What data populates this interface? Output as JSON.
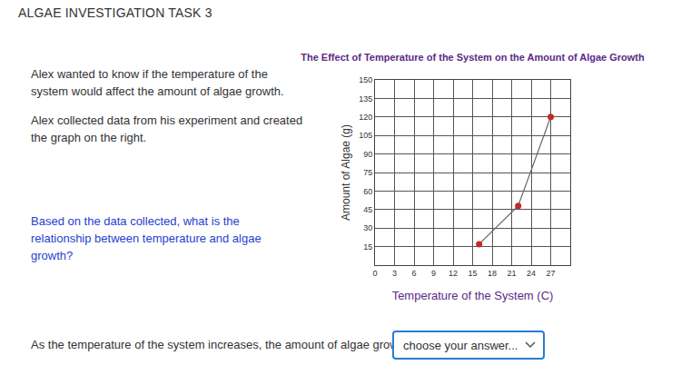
{
  "page": {
    "header": "ALGAE INVESTIGATION TASK 3",
    "paragraphs": [
      "Alex wanted to know if the temperature of the system would affect the amount of algae growth.",
      "Alex collected data from his experiment and created the graph on the right."
    ],
    "question": "Based on the data collected, what is the relationship between temperature and algae growth?",
    "answer_prompt": "As the temperature of the system increases, the amount of algae growth",
    "dropdown": "choose your answer..."
  },
  "chart_data": {
    "type": "line",
    "title": "The Effect of Temperature of the System on the Amount of Algae Growth",
    "x_label": "Temperature of the System (C)",
    "y_label": "Amount of Algae (g)",
    "x": [
      16,
      22,
      27
    ],
    "values": [
      17,
      48,
      120
    ],
    "color": "#c62828",
    "marker": "circle",
    "xlim": [
      0,
      30
    ],
    "xticks": [
      0,
      3,
      6,
      9,
      12,
      15,
      18,
      21,
      24,
      27
    ],
    "ylim": [
      0,
      150
    ],
    "yticks": [
      15,
      30,
      45,
      60,
      75,
      90,
      105,
      120,
      135,
      150
    ],
    "grid": true
  }
}
